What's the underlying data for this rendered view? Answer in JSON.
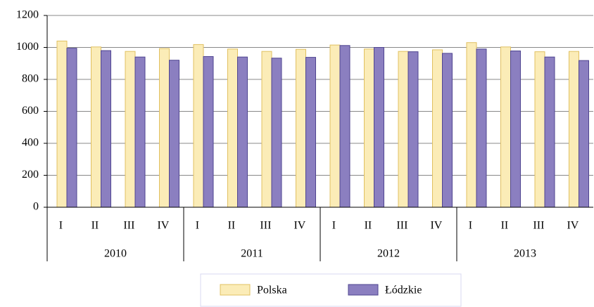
{
  "chart_data": {
    "type": "bar",
    "categories": [
      "I",
      "II",
      "III",
      "IV",
      "I",
      "II",
      "III",
      "IV",
      "I",
      "II",
      "III",
      "IV",
      "I",
      "II",
      "III",
      "IV"
    ],
    "groups": [
      "2010",
      "2011",
      "2012",
      "2013"
    ],
    "series": [
      {
        "name": "Polska",
        "color": "#fbecb7",
        "values": [
          1040,
          1003,
          975,
          993,
          1018,
          990,
          975,
          988,
          1015,
          990,
          975,
          985,
          1030,
          1003,
          973,
          975
        ]
      },
      {
        "name": "Łódzkie",
        "color": "#8b7fc0",
        "values": [
          995,
          980,
          940,
          920,
          943,
          940,
          933,
          938,
          1012,
          1000,
          973,
          963,
          990,
          978,
          940,
          918
        ]
      }
    ],
    "ylim": [
      0,
      1200
    ],
    "yticks": [
      0,
      200,
      400,
      600,
      800,
      1000,
      1200
    ],
    "grid": true
  }
}
